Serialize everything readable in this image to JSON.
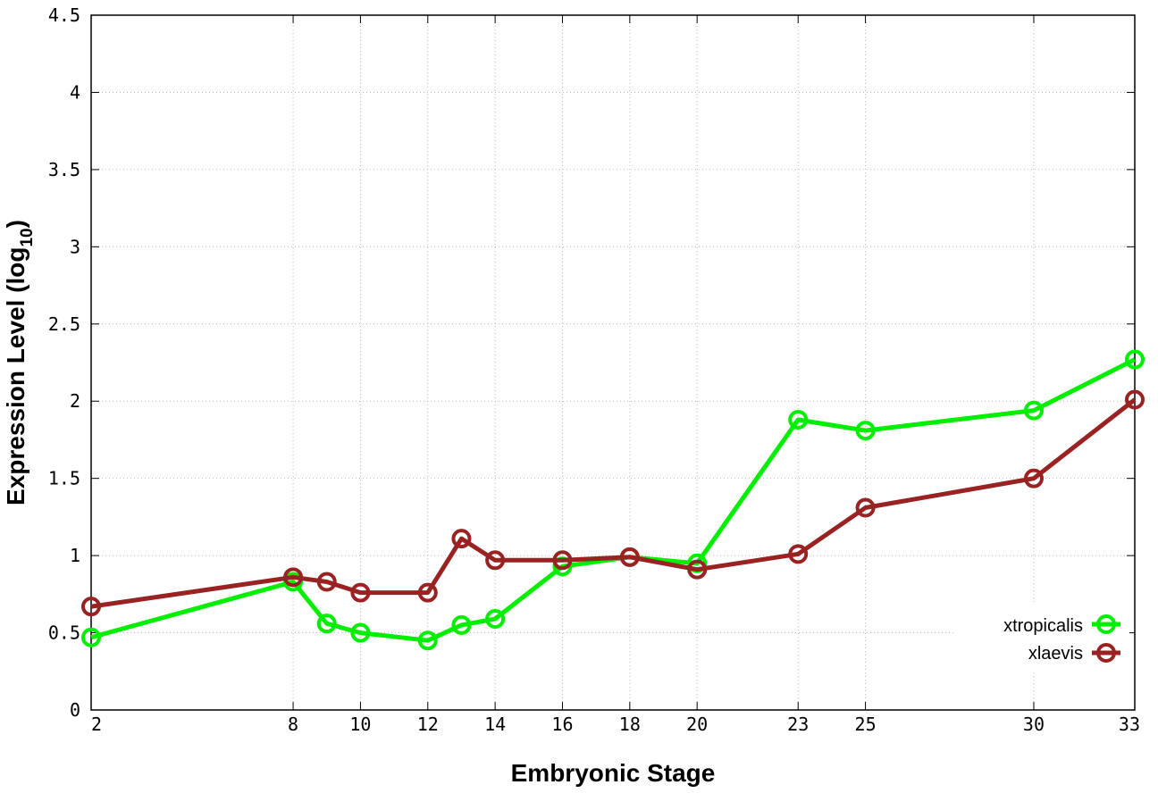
{
  "chart_data": {
    "type": "line",
    "xlabel": "Embryonic Stage",
    "ylabel_main": "Expression Level (log",
    "ylabel_sub": "10",
    "ylabel_close": ")",
    "x_ticks": [
      2,
      8,
      10,
      12,
      14,
      16,
      18,
      20,
      23,
      25,
      30,
      33
    ],
    "y_ticks": [
      "0",
      "0.5",
      "1",
      "1.5",
      "2",
      "2.5",
      "3",
      "3.5",
      "4",
      "4.5"
    ],
    "ylim": [
      0,
      4.5
    ],
    "xlim": [
      2,
      33
    ],
    "grid": true,
    "legend_position": "bottom-right",
    "series": [
      {
        "name": "xtropicalis",
        "color": "#00ee00",
        "x": [
          2,
          8,
          9,
          10,
          12,
          13,
          14,
          16,
          18,
          20,
          23,
          25,
          30,
          33
        ],
        "y": [
          0.47,
          0.83,
          0.56,
          0.5,
          0.45,
          0.55,
          0.59,
          0.93,
          0.99,
          0.95,
          1.88,
          1.81,
          1.94,
          2.27
        ]
      },
      {
        "name": "xlaevis",
        "color": "#992222",
        "x": [
          2,
          8,
          9,
          10,
          12,
          13,
          14,
          16,
          18,
          20,
          23,
          25,
          30,
          33
        ],
        "y": [
          0.67,
          0.86,
          0.83,
          0.76,
          0.76,
          1.11,
          0.97,
          0.97,
          0.99,
          0.91,
          1.01,
          1.31,
          1.5,
          2.01
        ]
      }
    ]
  }
}
